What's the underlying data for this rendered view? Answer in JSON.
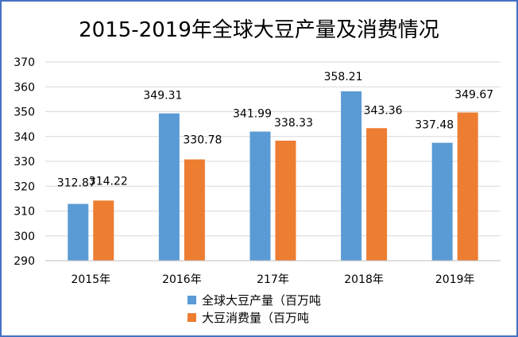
{
  "chart_data": {
    "type": "bar",
    "title": "2015-2019年全球大豆产量及消费情况",
    "categories": [
      "2015年",
      "2016年",
      "217年",
      "2018年",
      "2019年"
    ],
    "series": [
      {
        "name": "全球大豆产量（百万吨",
        "color": "#5b9bd5",
        "values": [
          312.87,
          349.31,
          341.99,
          358.21,
          337.48
        ]
      },
      {
        "name": "大豆消费量（百万吨",
        "color": "#ed7d31",
        "values": [
          314.22,
          330.78,
          338.33,
          343.36,
          349.67
        ]
      }
    ],
    "ylim": [
      290,
      370
    ],
    "yticks": [
      290,
      300,
      310,
      320,
      330,
      340,
      350,
      360,
      370
    ],
    "grid": true,
    "legend_position": "bottom"
  }
}
